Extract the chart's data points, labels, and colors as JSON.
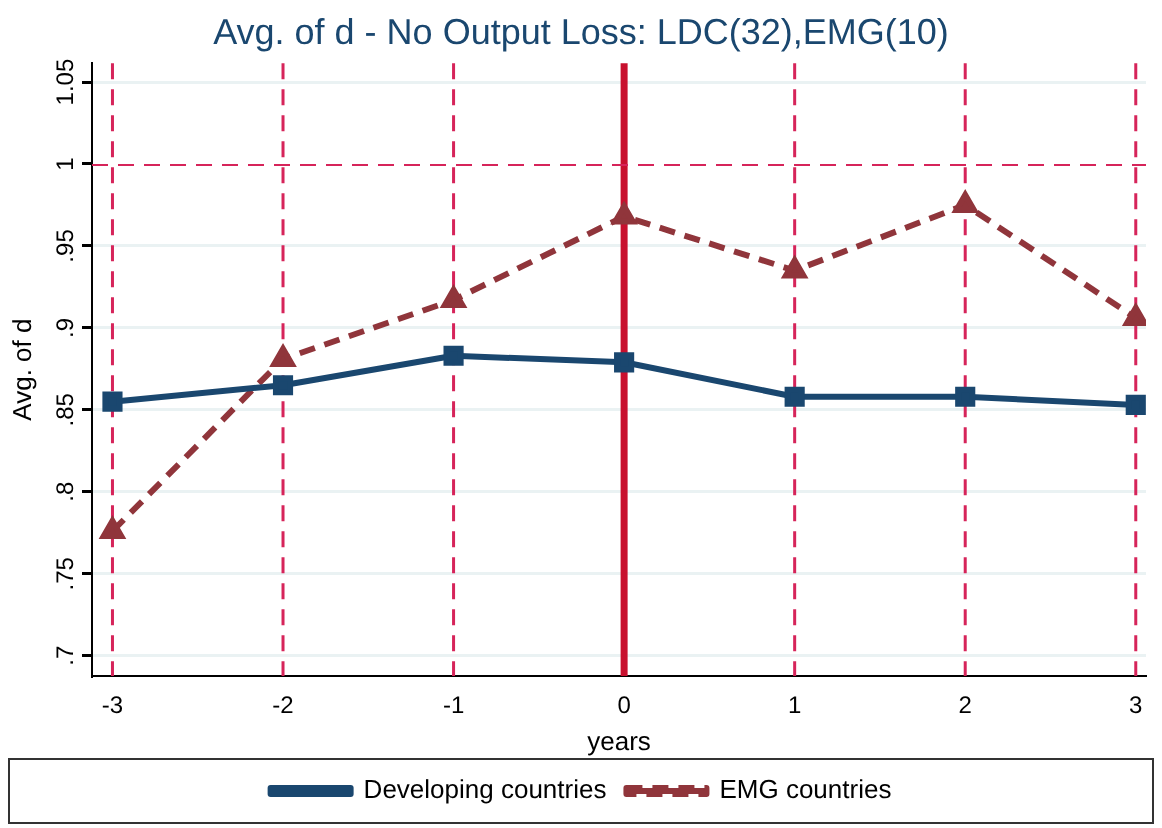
{
  "chart_data": {
    "type": "line",
    "title": "Avg. of d - No Output Loss: LDC(32),EMG(10)",
    "xlabel": "years",
    "ylabel": "Avg. of d",
    "x": [
      -3,
      -2,
      -1,
      0,
      1,
      2,
      3
    ],
    "series": [
      {
        "name": "Developing countries",
        "color": "#1a476f",
        "values": [
          0.855,
          0.865,
          0.883,
          0.879,
          0.858,
          0.858,
          0.853
        ],
        "marker": "square",
        "line_style": "solid"
      },
      {
        "name": "EMG countries",
        "color": "#90353b",
        "values": [
          0.776,
          0.881,
          0.917,
          0.968,
          0.935,
          0.975,
          0.906
        ],
        "marker": "triangle",
        "line_style": "dashed"
      }
    ],
    "xlim": [
      -3.12,
      3.06
    ],
    "xticks": [
      -3,
      -2,
      -1,
      0,
      1,
      2,
      3
    ],
    "ylim": [
      0.6876,
      1.0615
    ],
    "yticks": [
      {
        "value": 0.7,
        "label": ".7"
      },
      {
        "value": 0.75,
        "label": ".75"
      },
      {
        "value": 0.8,
        "label": ".8"
      },
      {
        "value": 0.85,
        "label": ".85"
      },
      {
        "value": 0.9,
        "label": ".9"
      },
      {
        "value": 0.95,
        "label": ".95"
      },
      {
        "value": 1,
        "label": "1"
      },
      {
        "value": 1.05,
        "label": "1.05"
      }
    ],
    "grid": "y",
    "legend": "bottom",
    "ref_lines": [
      {
        "axis": "x",
        "value": -3,
        "color": "#d6245a",
        "line_style": "dashed"
      },
      {
        "axis": "x",
        "value": -2,
        "color": "#d6245a",
        "line_style": "dashed"
      },
      {
        "axis": "x",
        "value": -1,
        "color": "#d6245a",
        "line_style": "dashed"
      },
      {
        "axis": "x",
        "value": 0,
        "color": "#c8102e",
        "line_style": "solid"
      },
      {
        "axis": "x",
        "value": 1,
        "color": "#d6245a",
        "line_style": "dashed"
      },
      {
        "axis": "x",
        "value": 2,
        "color": "#d6245a",
        "line_style": "dashed"
      },
      {
        "axis": "x",
        "value": 3,
        "color": "#d6245a",
        "line_style": "dashed"
      },
      {
        "axis": "y",
        "value": 1,
        "color": "#d6245a",
        "line_style": "dashed"
      }
    ]
  }
}
